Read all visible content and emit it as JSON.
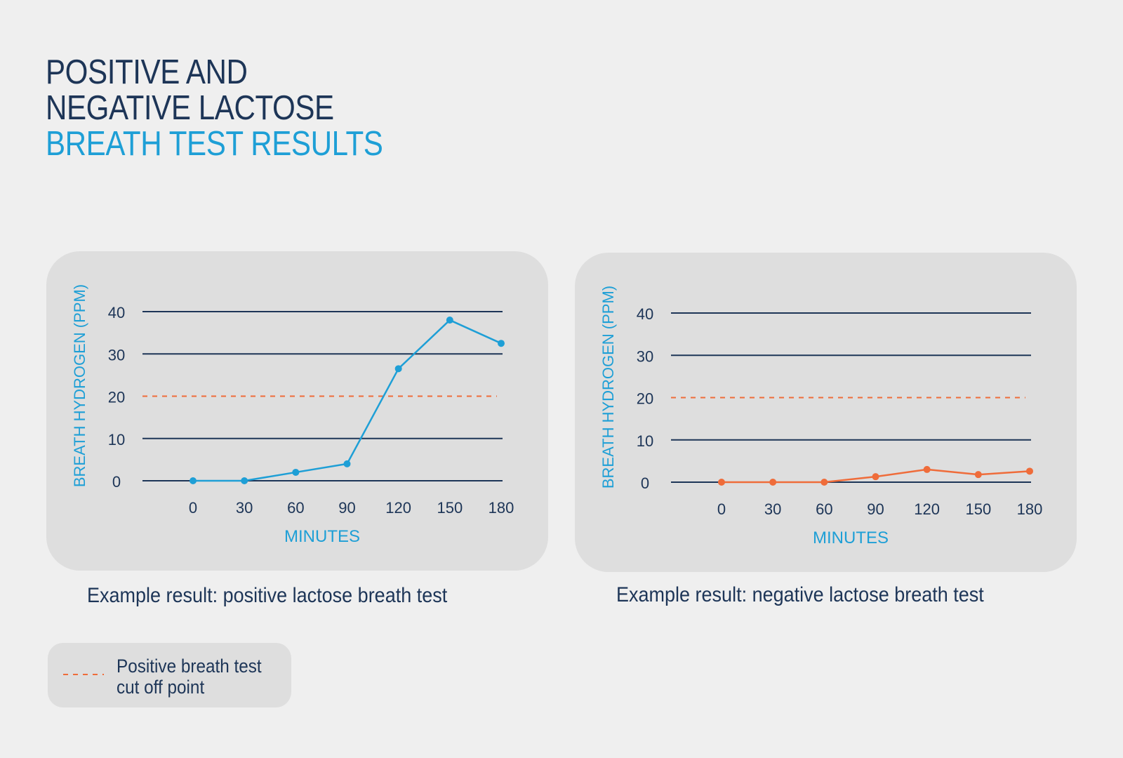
{
  "title": {
    "line1": "POSITIVE AND",
    "line2": "NEGATIVE LACTOSE",
    "line3": "BREATH TEST RESULTS"
  },
  "legend": {
    "line1": "Positive breath test",
    "line2": "cut off point"
  },
  "colors": {
    "dark": "#1d3557",
    "blue": "#1e9fd6",
    "orange": "#ef6c3a",
    "panel": "#dedede",
    "background": "#efefef"
  },
  "chart_data": [
    {
      "type": "line",
      "caption": "Example result: positive lactose breath test",
      "xlabel": "MINUTES",
      "ylabel": "BREATH HYDROGEN (PPM)",
      "x": [
        0,
        30,
        60,
        90,
        120,
        150,
        180
      ],
      "series": [
        {
          "values": [
            0,
            0,
            2,
            4,
            26.5,
            38,
            32.5
          ],
          "color": "#1e9fd6"
        }
      ],
      "yticks": [
        0,
        10,
        20,
        30,
        40
      ],
      "xticks": [
        0,
        30,
        60,
        90,
        120,
        150,
        180
      ],
      "ylim": [
        0,
        40
      ],
      "xlim": [
        0,
        180
      ],
      "cutoff": 20,
      "grid": true
    },
    {
      "type": "line",
      "caption": "Example result: negative lactose breath test",
      "xlabel": "MINUTES",
      "ylabel": "BREATH HYDROGEN (PPM)",
      "x": [
        0,
        30,
        60,
        90,
        120,
        150,
        180
      ],
      "series": [
        {
          "values": [
            0,
            0,
            0,
            1.3,
            3,
            1.8,
            2.6
          ],
          "color": "#ef6c3a"
        }
      ],
      "yticks": [
        0,
        10,
        20,
        30,
        40
      ],
      "xticks": [
        0,
        30,
        60,
        90,
        120,
        150,
        180
      ],
      "ylim": [
        0,
        40
      ],
      "xlim": [
        0,
        180
      ],
      "cutoff": 20,
      "grid": true
    }
  ]
}
